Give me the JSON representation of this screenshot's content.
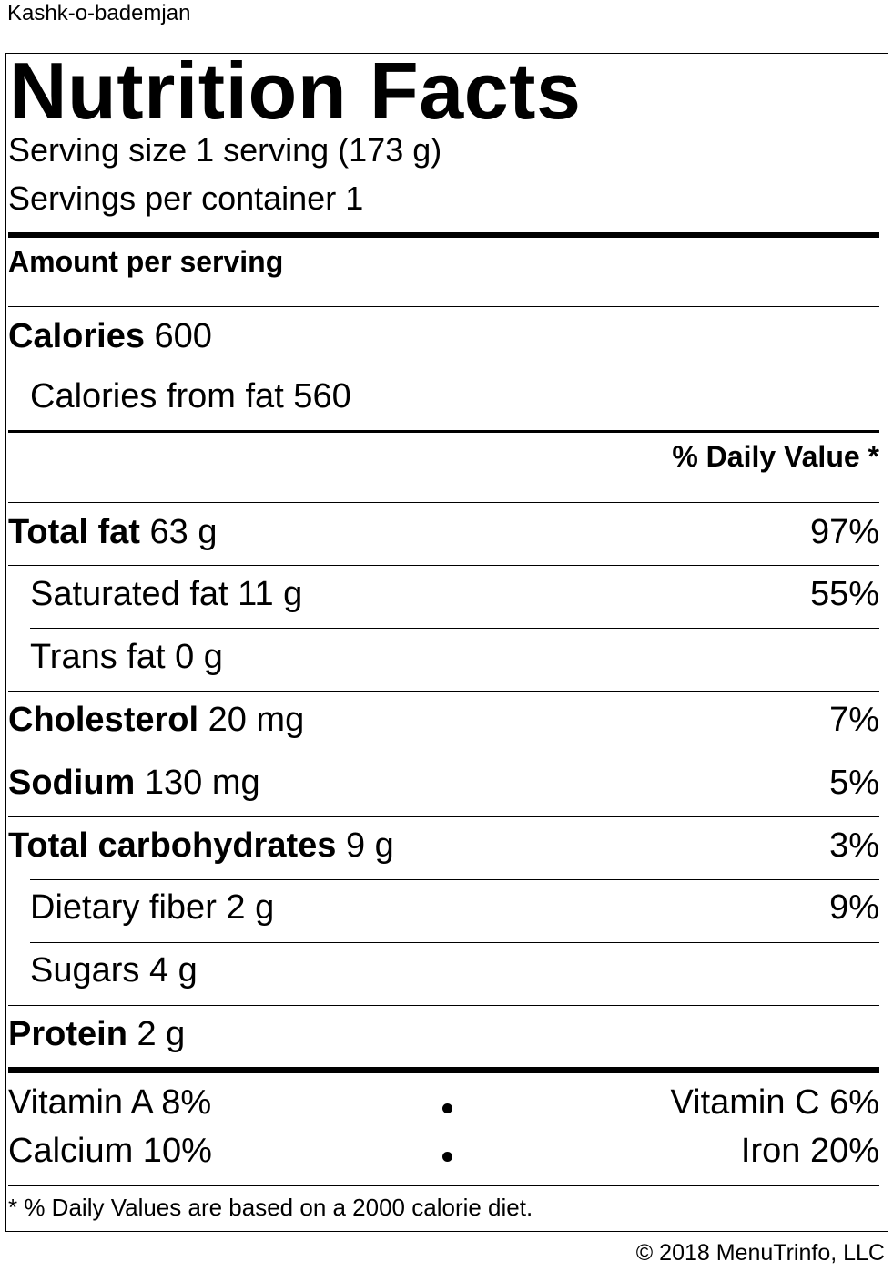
{
  "recipe_name": "Kashk-o-bademjan",
  "label": {
    "heading": "Nutrition Facts",
    "serving_size": "Serving size 1 serving (173 g)",
    "servings_per_container": "Servings per container 1",
    "amount_per_serving": "Amount per serving",
    "calories": {
      "label": "Calories",
      "value": "600"
    },
    "calories_from_fat": "Calories from fat 560",
    "daily_value_header": "% Daily Value *",
    "nutrients": [
      {
        "label": "Total fat",
        "amount": "63 g",
        "dv": "97%"
      },
      {
        "label": "Saturated fat",
        "amount": "11 g",
        "dv": "55%"
      },
      {
        "label": "Trans fat",
        "amount": "0 g",
        "dv": ""
      },
      {
        "label": "Cholesterol",
        "amount": "20 mg",
        "dv": "7%"
      },
      {
        "label": "Sodium",
        "amount": "130 mg",
        "dv": "5%"
      },
      {
        "label": "Total carbohydrates",
        "amount": "9 g",
        "dv": "3%"
      },
      {
        "label": "Dietary fiber",
        "amount": "2 g",
        "dv": "9%"
      },
      {
        "label": "Sugars",
        "amount": "4 g",
        "dv": ""
      },
      {
        "label": "Protein",
        "amount": "2 g",
        "dv": ""
      }
    ],
    "vitamins": {
      "vitamin_a": "Vitamin A 8%",
      "vitamin_c": "Vitamin C 6%",
      "calcium": "Calcium 10%",
      "iron": "Iron 20%"
    },
    "footnote": "* % Daily Values are based on a 2000 calorie diet."
  },
  "copyright": "© 2018 MenuTrinfo, LLC"
}
